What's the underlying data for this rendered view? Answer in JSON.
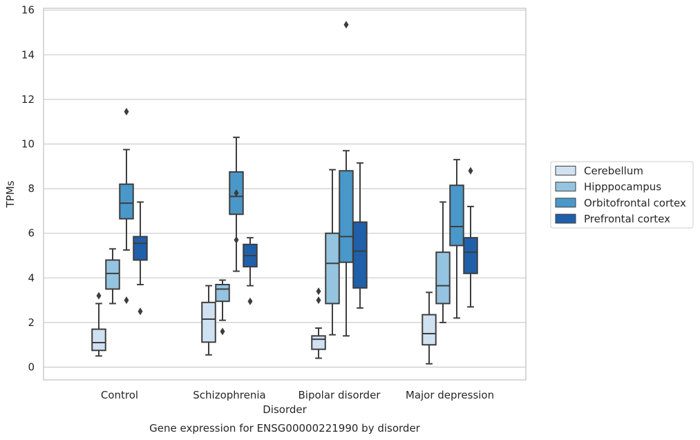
{
  "chart_data": {
    "type": "box",
    "caption": "Gene expression for ENSG00000221990 by disorder",
    "xlabel": "Disorder",
    "ylabel": "TPMs",
    "ylim": [
      -0.6,
      16.1
    ],
    "yticks": [
      0,
      2,
      4,
      6,
      8,
      10,
      12,
      14,
      16
    ],
    "grid": "horizontal",
    "legend_position": "right",
    "categories": [
      "Control",
      "Schizophrenia",
      "Bipolar disorder",
      "Major depression"
    ],
    "series": [
      {
        "name": "Cerebellum",
        "color": "#d0e1f2",
        "boxes": [
          {
            "whislo": 0.5,
            "q1": 0.75,
            "med": 1.1,
            "q3": 1.7,
            "whishi": 2.85,
            "fliers": [
              3.2
            ]
          },
          {
            "whislo": 0.55,
            "q1": 1.12,
            "med": 2.15,
            "q3": 2.9,
            "whishi": 3.65,
            "fliers": []
          },
          {
            "whislo": 0.4,
            "q1": 0.8,
            "med": 1.25,
            "q3": 1.4,
            "whishi": 1.75,
            "fliers": [
              3.4,
              3.0
            ]
          },
          {
            "whislo": 0.15,
            "q1": 1.0,
            "med": 1.5,
            "q3": 2.35,
            "whishi": 3.35,
            "fliers": []
          }
        ]
      },
      {
        "name": "Hipppocampus",
        "color": "#94c4df",
        "boxes": [
          {
            "whislo": 2.85,
            "q1": 3.5,
            "med": 4.2,
            "q3": 4.8,
            "whishi": 5.3,
            "fliers": []
          },
          {
            "whislo": 2.1,
            "q1": 2.95,
            "med": 3.5,
            "q3": 3.7,
            "whishi": 3.9,
            "fliers": [
              1.6
            ]
          },
          {
            "whislo": 1.45,
            "q1": 2.85,
            "med": 4.65,
            "q3": 6.0,
            "whishi": 8.85,
            "fliers": []
          },
          {
            "whislo": 2.0,
            "q1": 2.85,
            "med": 3.65,
            "q3": 5.15,
            "whishi": 7.4,
            "fliers": []
          }
        ]
      },
      {
        "name": "Orbitofrontal cortex",
        "color": "#4a98c9",
        "boxes": [
          {
            "whislo": 5.25,
            "q1": 6.65,
            "med": 7.35,
            "q3": 8.2,
            "whishi": 9.75,
            "fliers": [
              11.45,
              3.0
            ]
          },
          {
            "whislo": 4.3,
            "q1": 6.85,
            "med": 7.65,
            "q3": 8.75,
            "whishi": 10.3,
            "fliers": [
              7.8,
              5.7
            ]
          },
          {
            "whislo": 1.4,
            "q1": 4.7,
            "med": 5.85,
            "q3": 8.8,
            "whishi": 9.7,
            "fliers": [
              15.35
            ]
          },
          {
            "whislo": 2.2,
            "q1": 5.45,
            "med": 6.3,
            "q3": 8.15,
            "whishi": 9.3,
            "fliers": []
          }
        ]
      },
      {
        "name": "Prefrontal cortex",
        "color": "#2060aa",
        "boxes": [
          {
            "whislo": 3.7,
            "q1": 4.8,
            "med": 5.55,
            "q3": 5.85,
            "whishi": 7.4,
            "fliers": [
              2.5
            ]
          },
          {
            "whislo": 3.65,
            "q1": 4.5,
            "med": 5.0,
            "q3": 5.5,
            "whishi": 5.8,
            "fliers": [
              2.95
            ]
          },
          {
            "whislo": 2.65,
            "q1": 3.55,
            "med": 5.2,
            "q3": 6.5,
            "whishi": 9.15,
            "fliers": []
          },
          {
            "whislo": 2.7,
            "q1": 4.2,
            "med": 5.15,
            "q3": 5.8,
            "whishi": 7.2,
            "fliers": [
              8.8
            ]
          }
        ]
      }
    ]
  }
}
